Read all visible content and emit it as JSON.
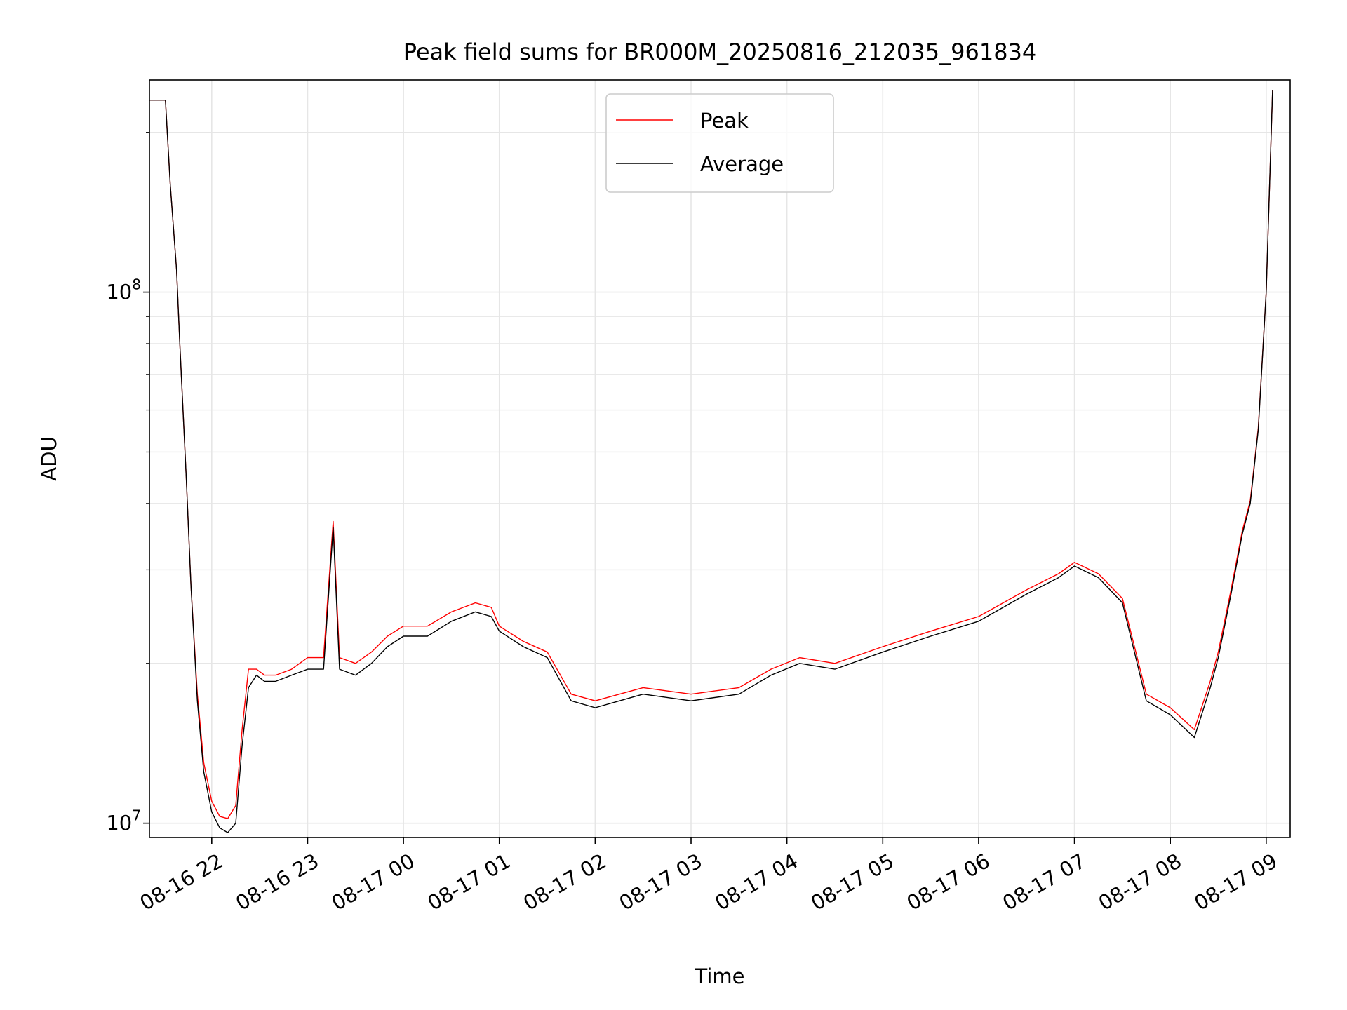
{
  "chart_data": {
    "type": "line",
    "title": "Peak field sums for BR000M_20250816_212035_961834",
    "xlabel": "Time",
    "ylabel": "ADU",
    "y_scale": "log",
    "ylim": [
      9400000,
      251000000
    ],
    "xlim": [
      "2025-08-16 21:21",
      "2025-08-17 09:15"
    ],
    "grid": true,
    "legend_position": "upper center",
    "x_ticks": [
      "08-16 22",
      "08-16 23",
      "08-17 00",
      "08-17 01",
      "08-17 02",
      "08-17 03",
      "08-17 04",
      "08-17 05",
      "08-17 06",
      "08-17 07",
      "08-17 08",
      "08-17 09"
    ],
    "x_tick_times": [
      "2025-08-16 22:00",
      "2025-08-16 23:00",
      "2025-08-17 00:00",
      "2025-08-17 01:00",
      "2025-08-17 02:00",
      "2025-08-17 03:00",
      "2025-08-17 04:00",
      "2025-08-17 05:00",
      "2025-08-17 06:00",
      "2025-08-17 07:00",
      "2025-08-17 08:00",
      "2025-08-17 09:00"
    ],
    "y_major_ticks": [
      {
        "value": 10000000,
        "base": "10",
        "exp": "7"
      },
      {
        "value": 100000000,
        "base": "10",
        "exp": "8"
      }
    ],
    "y_minor_ticks": [
      20000000,
      30000000,
      40000000,
      50000000,
      60000000,
      70000000,
      80000000,
      90000000,
      200000000
    ],
    "series": [
      {
        "name": "Peak",
        "color": "#ff0000"
      },
      {
        "name": "Average",
        "color": "#000000"
      }
    ],
    "x": [
      "2025-08-16 21:21",
      "2025-08-16 21:31",
      "2025-08-16 21:34",
      "2025-08-16 21:38",
      "2025-08-16 21:40",
      "2025-08-16 21:44",
      "2025-08-16 21:47",
      "2025-08-16 21:51",
      "2025-08-16 21:55",
      "2025-08-16 22:00",
      "2025-08-16 22:05",
      "2025-08-16 22:10",
      "2025-08-16 22:15",
      "2025-08-16 22:19",
      "2025-08-16 22:23",
      "2025-08-16 22:28",
      "2025-08-16 22:33",
      "2025-08-16 22:40",
      "2025-08-16 22:50",
      "2025-08-16 23:00",
      "2025-08-16 23:10",
      "2025-08-16 23:16",
      "2025-08-16 23:20",
      "2025-08-16 23:30",
      "2025-08-16 23:40",
      "2025-08-16 23:50",
      "2025-08-17 00:00",
      "2025-08-17 00:15",
      "2025-08-17 00:30",
      "2025-08-17 00:45",
      "2025-08-17 00:55",
      "2025-08-17 01:00",
      "2025-08-17 01:15",
      "2025-08-17 01:30",
      "2025-08-17 01:45",
      "2025-08-17 02:00",
      "2025-08-17 02:30",
      "2025-08-17 03:00",
      "2025-08-17 03:30",
      "2025-08-17 03:50",
      "2025-08-17 04:08",
      "2025-08-17 04:30",
      "2025-08-17 05:00",
      "2025-08-17 05:30",
      "2025-08-17 06:00",
      "2025-08-17 06:30",
      "2025-08-17 06:50",
      "2025-08-17 07:00",
      "2025-08-17 07:15",
      "2025-08-17 07:30",
      "2025-08-17 07:45",
      "2025-08-17 08:00",
      "2025-08-17 08:15",
      "2025-08-17 08:25",
      "2025-08-17 08:30",
      "2025-08-17 08:38",
      "2025-08-17 08:45",
      "2025-08-17 08:50",
      "2025-08-17 08:55",
      "2025-08-17 09:00",
      "2025-08-17 09:04"
    ],
    "average_values": [
      230000000,
      230000000,
      160000000,
      110000000,
      80000000,
      45000000,
      28000000,
      17000000,
      12500000,
      10500000,
      9800000,
      9600000,
      10000000,
      14000000,
      18000000,
      19000000,
      18500000,
      18500000,
      19000000,
      19500000,
      19500000,
      36000000,
      19500000,
      19000000,
      20000000,
      21500000,
      22500000,
      22500000,
      24000000,
      25000000,
      24500000,
      23000000,
      21500000,
      20500000,
      17000000,
      16500000,
      17500000,
      17000000,
      17500000,
      19000000,
      20000000,
      19500000,
      21000000,
      22500000,
      24000000,
      27000000,
      29000000,
      30500000,
      29000000,
      26000000,
      17000000,
      16000000,
      14500000,
      18000000,
      20500000,
      27000000,
      35000000,
      40000000,
      55000000,
      100000000,
      240000000
    ],
    "peak_values": [
      230000000,
      230000000,
      160000000,
      110000000,
      80000000,
      45000000,
      28000000,
      17500000,
      13000000,
      11000000,
      10300000,
      10200000,
      10800000,
      15000000,
      19500000,
      19500000,
      19000000,
      19000000,
      19500000,
      20500000,
      20500000,
      37000000,
      20500000,
      20000000,
      21000000,
      22500000,
      23500000,
      23500000,
      25000000,
      26000000,
      25500000,
      23500000,
      22000000,
      21000000,
      17500000,
      17000000,
      18000000,
      17500000,
      18000000,
      19500000,
      20500000,
      20000000,
      21500000,
      23000000,
      24500000,
      27500000,
      29500000,
      31000000,
      29500000,
      26500000,
      17500000,
      16500000,
      15000000,
      18500000,
      21000000,
      27500000,
      35500000,
      40500000,
      55500000,
      100000000,
      240000000
    ]
  }
}
